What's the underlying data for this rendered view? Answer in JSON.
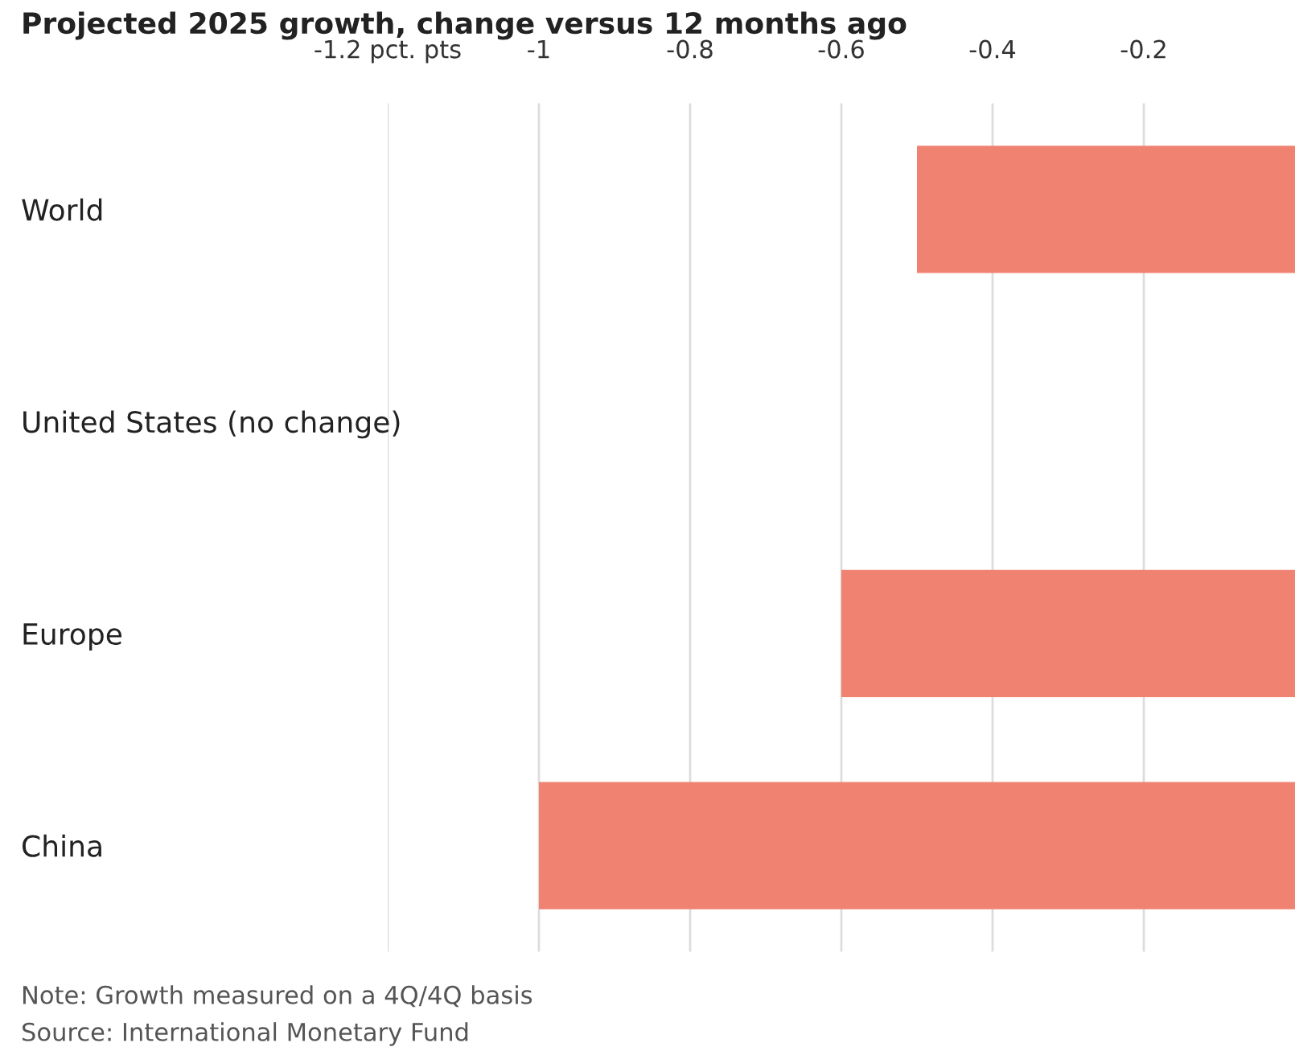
{
  "chart_data": {
    "type": "bar",
    "orientation": "horizontal",
    "title": "Projected 2025 growth, change versus 12 months ago",
    "categories": [
      "World",
      "United States (no change)",
      "Europe",
      "China"
    ],
    "values": [
      -0.5,
      0,
      -0.6,
      -1.0
    ],
    "color": "#f08272",
    "xlim": [
      -1.2,
      0
    ],
    "xticks": [
      {
        "value": -1.2,
        "label": "-1.2 pct. pts"
      },
      -1,
      -0.8,
      -0.6,
      -0.4,
      -0.2
    ],
    "grid": "x",
    "legend": false,
    "annotations": [
      "Note: Growth measured on a 4Q/4Q basis",
      "Source: International Monetary Fund"
    ]
  }
}
